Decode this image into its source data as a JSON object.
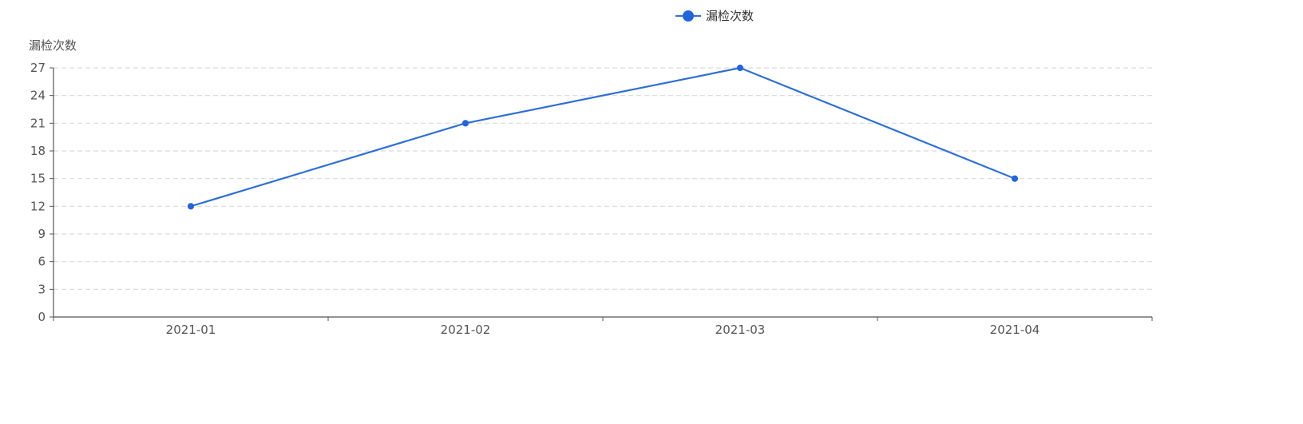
{
  "chart_data": {
    "type": "line",
    "title": "",
    "xlabel": "",
    "ylabel": "漏检次数",
    "categories": [
      "2021-01",
      "2021-02",
      "2021-03",
      "2021-04"
    ],
    "series": [
      {
        "name": "漏检次数",
        "values": [
          12,
          21,
          27,
          15
        ]
      }
    ],
    "ylim": [
      0,
      27
    ],
    "yticks": [
      0,
      3,
      6,
      9,
      12,
      15,
      18,
      21,
      24,
      27
    ],
    "grid": true,
    "grid_style": "dashed",
    "legend_position": "top-center",
    "colors": {
      "series": "#2f6fd6",
      "marker": "#2563d9",
      "axis": "#555555",
      "grid": "#d9d9d9"
    }
  }
}
